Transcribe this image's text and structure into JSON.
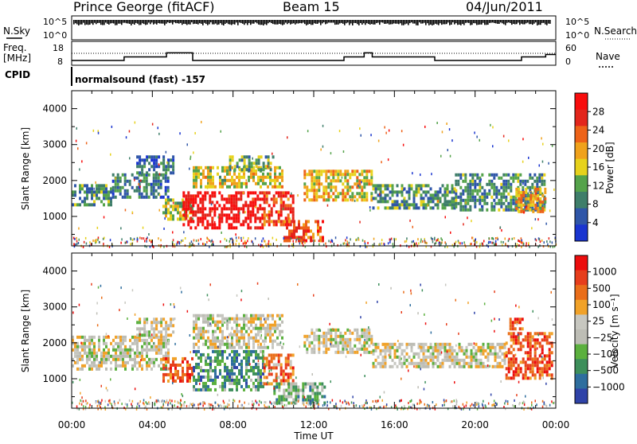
{
  "header": {
    "station": "Prince George (fitACF)",
    "beam": "Beam 15",
    "date": "04/Jun/2011"
  },
  "aux": {
    "nsky_label": "N.Sky",
    "nsearch_label": "N.Search",
    "freq_label_1": "Freq.",
    "freq_label_2": "[MHz]",
    "nave_label": "Nave",
    "cpid_label": "CPID",
    "cpid_value": "normalsound (fast) -157",
    "left_ticks_top": [
      "10^5",
      "10^0"
    ],
    "right_ticks_top": [
      "10^5",
      "10^0"
    ],
    "left_ticks_freq": [
      "18",
      "8"
    ],
    "right_ticks_nave": [
      "60",
      "0"
    ],
    "freq_steps": [
      {
        "t": 0.0,
        "v": 10.0
      },
      {
        "t": 2.6,
        "v": 11.5
      },
      {
        "t": 4.7,
        "v": 13.2
      },
      {
        "t": 6.0,
        "v": 10.0
      },
      {
        "t": 13.5,
        "v": 11.5
      },
      {
        "t": 14.5,
        "v": 13.2
      },
      {
        "t": 14.9,
        "v": 11.5
      },
      {
        "t": 18.0,
        "v": 10.0
      },
      {
        "t": 22.3,
        "v": 11.5
      },
      {
        "t": 23.5,
        "v": 12.5
      }
    ],
    "nave_level": 0.45
  },
  "colors": {
    "power": [
      "#1a35d0",
      "#2f56a8",
      "#3f7e6a",
      "#55a34b",
      "#e7d21c",
      "#f0a21c",
      "#ee6318",
      "#e3261c",
      "#f80d0d"
    ],
    "velocity": [
      "#2f43a8",
      "#2e6e9e",
      "#3d8f5b",
      "#5bb03e",
      "#bdbdb5",
      "#c7c7c0",
      "#f1a229",
      "#ea6e1a",
      "#e73e1c",
      "#ec0d0d"
    ],
    "ground": "#bfbfbb"
  },
  "chart_data": [
    {
      "type": "heatmap",
      "name": "Power",
      "ylabel": "Slant Range [km]",
      "xlabel": "Time UT",
      "ylim": [
        180,
        4500
      ],
      "xlim": [
        0,
        24
      ],
      "y_ticks": [
        "4000",
        "3000",
        "2000",
        "1000"
      ],
      "x_ticks": [
        "00:00",
        "04:00",
        "08:00",
        "12:00",
        "16:00",
        "20:00",
        "00:00"
      ],
      "colorbar_label": "Power [dB]",
      "colorbar_ticks": [
        "28",
        "24",
        "20",
        "16",
        "12",
        "8",
        "4"
      ],
      "regions": [
        {
          "t0": 0.0,
          "t1": 2.0,
          "r0": 1300,
          "r1": 1900,
          "level": 0.3
        },
        {
          "t0": 2.0,
          "t1": 4.8,
          "r0": 1500,
          "r1": 2200,
          "level": 0.25
        },
        {
          "t0": 3.2,
          "t1": 5.0,
          "r0": 2200,
          "r1": 2700,
          "level": 0.2
        },
        {
          "t0": 4.5,
          "t1": 6.0,
          "r0": 900,
          "r1": 1500,
          "level": 0.45
        },
        {
          "t0": 5.5,
          "t1": 9.5,
          "r0": 650,
          "r1": 1700,
          "level": 0.95
        },
        {
          "t0": 9.5,
          "t1": 11.0,
          "r0": 800,
          "r1": 1700,
          "level": 0.8
        },
        {
          "t0": 6.0,
          "t1": 10.5,
          "r0": 1800,
          "r1": 2400,
          "level": 0.5
        },
        {
          "t0": 7.8,
          "t1": 10.0,
          "r0": 2300,
          "r1": 2700,
          "level": 0.35
        },
        {
          "t0": 10.5,
          "t1": 12.5,
          "r0": 300,
          "r1": 900,
          "level": 0.75
        },
        {
          "t0": 11.5,
          "t1": 14.9,
          "r0": 1500,
          "r1": 2300,
          "level": 0.55
        },
        {
          "t0": 14.9,
          "t1": 19.0,
          "r0": 1200,
          "r1": 1900,
          "level": 0.3
        },
        {
          "t0": 19.0,
          "t1": 23.5,
          "r0": 1200,
          "r1": 2200,
          "level": 0.3
        },
        {
          "t0": 22.0,
          "t1": 23.5,
          "r0": 1100,
          "r1": 1800,
          "level": 0.6
        }
      ]
    },
    {
      "type": "heatmap",
      "name": "Velocity",
      "ylabel": "Slant Range [km]",
      "xlabel": "Time UT",
      "ylim": [
        180,
        4500
      ],
      "xlim": [
        0,
        24
      ],
      "y_ticks": [
        "4000",
        "3000",
        "2000",
        "1000"
      ],
      "x_ticks": [
        "00:00",
        "04:00",
        "08:00",
        "12:00",
        "16:00",
        "20:00",
        "00:00"
      ],
      "colorbar_label": "Velocity [m s⁻¹]",
      "colorbar_ticks": [
        "1000",
        "500",
        "100",
        "25",
        "−25",
        "−100",
        "−500",
        "−1000"
      ],
      "regions": [
        {
          "t0": 0.0,
          "t1": 4.8,
          "r0": 1300,
          "r1": 2200,
          "level": 0.52
        },
        {
          "t0": 3.2,
          "t1": 5.0,
          "r0": 2200,
          "r1": 2700,
          "level": 0.52
        },
        {
          "t0": 4.5,
          "t1": 6.0,
          "r0": 950,
          "r1": 1600,
          "level": 0.8
        },
        {
          "t0": 6.0,
          "t1": 9.5,
          "r0": 650,
          "r1": 1800,
          "level": 0.25
        },
        {
          "t0": 9.5,
          "t1": 11.0,
          "r0": 900,
          "r1": 1700,
          "level": 0.75
        },
        {
          "t0": 6.0,
          "t1": 10.5,
          "r0": 1900,
          "r1": 2800,
          "level": 0.52
        },
        {
          "t0": 10.0,
          "t1": 12.5,
          "r0": 300,
          "r1": 900,
          "level": 0.35
        },
        {
          "t0": 11.5,
          "t1": 14.9,
          "r0": 1700,
          "r1": 2400,
          "level": 0.52
        },
        {
          "t0": 14.9,
          "t1": 21.5,
          "r0": 1300,
          "r1": 2000,
          "level": 0.52
        },
        {
          "t0": 21.5,
          "t1": 23.8,
          "r0": 1000,
          "r1": 2300,
          "level": 0.82
        },
        {
          "t0": 21.7,
          "t1": 22.3,
          "r0": 2400,
          "r1": 2700,
          "level": 0.8
        }
      ]
    }
  ]
}
